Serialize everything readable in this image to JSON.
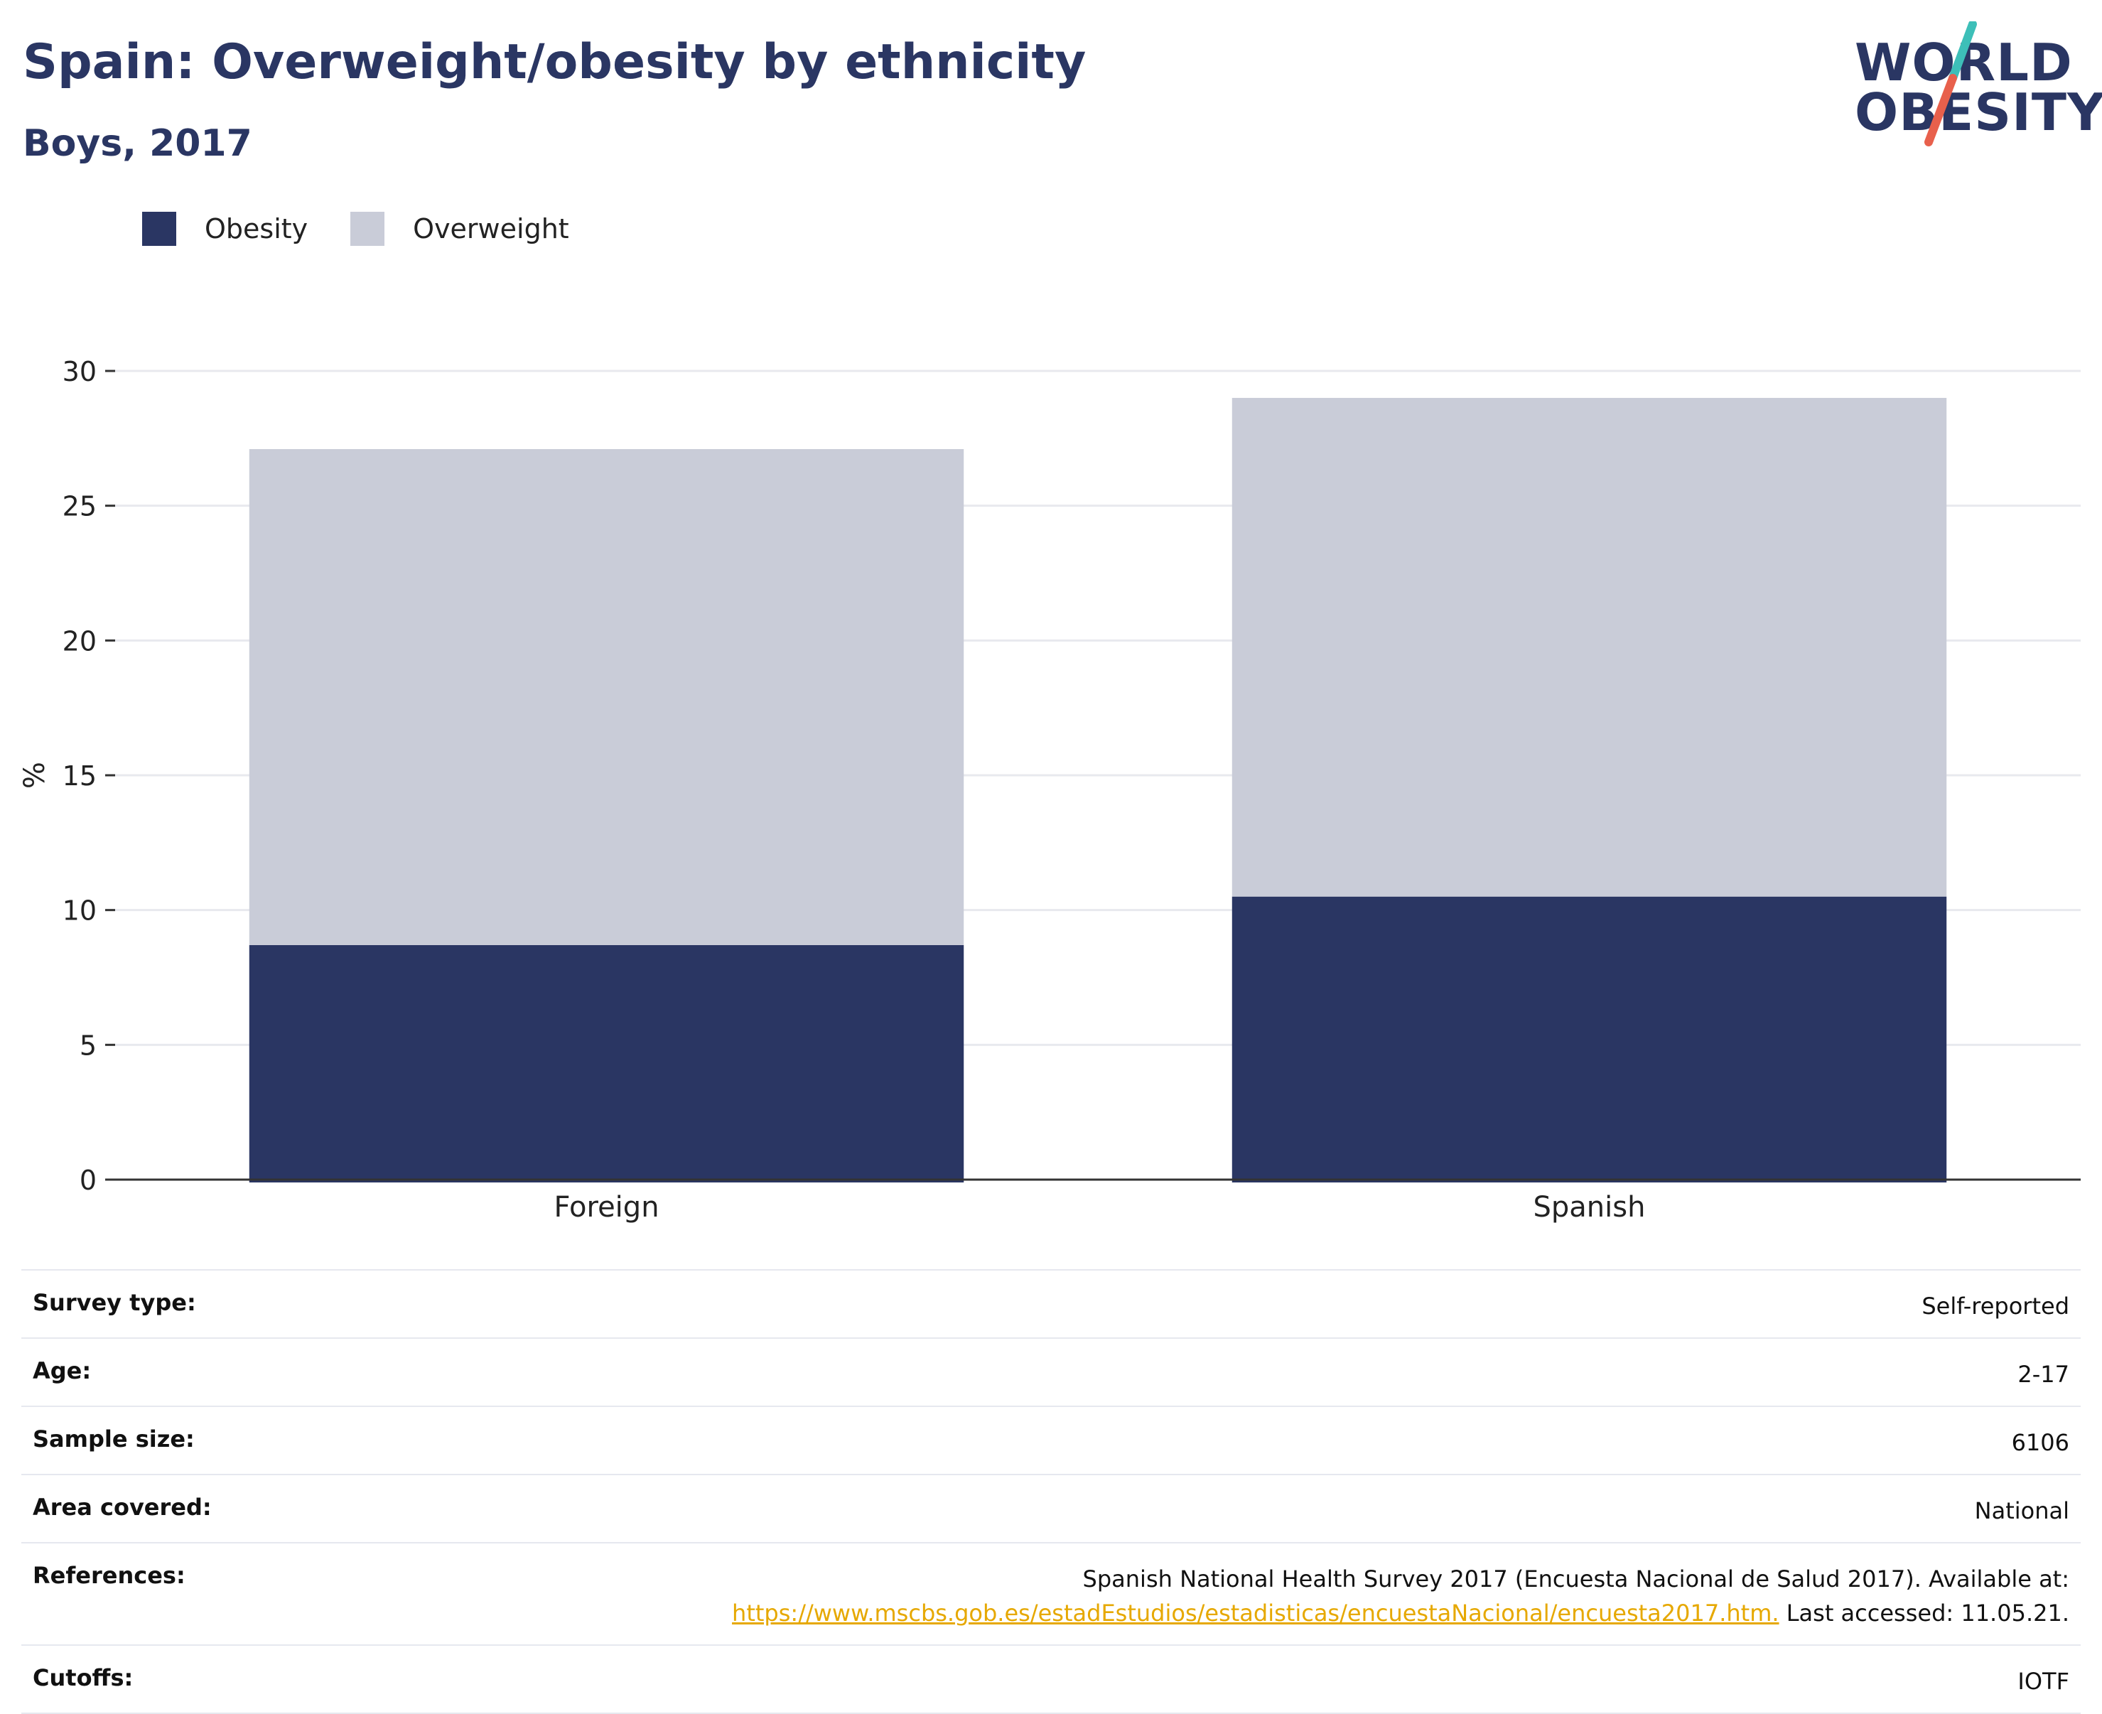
{
  "header": {
    "title": "Spain: Overweight/obesity by ethnicity",
    "subtitle": "Boys, 2017"
  },
  "logo": {
    "line1": "WORLD",
    "line2": "OBESITY",
    "slash_top_color": "#3dbfb8",
    "slash_bottom_color": "#e8604c"
  },
  "legend": {
    "items": [
      {
        "label": "Obesity",
        "color": "#2a3663"
      },
      {
        "label": "Overweight",
        "color": "#c9ccd8"
      }
    ]
  },
  "chart_data": {
    "type": "bar",
    "stacked": true,
    "categories": [
      "Foreign",
      "Spanish"
    ],
    "series": [
      {
        "name": "Obesity",
        "color": "#2a3663",
        "values": [
          8.7,
          10.5
        ]
      },
      {
        "name": "Overweight",
        "color": "#c9ccd8",
        "values": [
          18.4,
          18.5
        ]
      }
    ],
    "ylabel": "%",
    "ylim": [
      0,
      30
    ],
    "yticks": [
      0,
      5,
      10,
      15,
      20,
      25,
      30
    ],
    "grid": true
  },
  "info": {
    "rows": [
      {
        "label": "Survey type:",
        "value": "Self-reported"
      },
      {
        "label": "Age:",
        "value": "2-17"
      },
      {
        "label": "Sample size:",
        "value": "6106"
      },
      {
        "label": "Area covered:",
        "value": "National"
      }
    ],
    "references": {
      "label": "References:",
      "text": "Spanish National Health Survey 2017 (Encuesta Nacional de Salud 2017). Available at:",
      "link": "https://www.mscbs.gob.es/estadEstudios/estadisticas/encuestaNacional/encuesta2017.htm.",
      "suffix": " Last accessed: 11.05.21."
    },
    "cutoffs": {
      "label": "Cutoffs:",
      "value": "IOTF"
    }
  }
}
